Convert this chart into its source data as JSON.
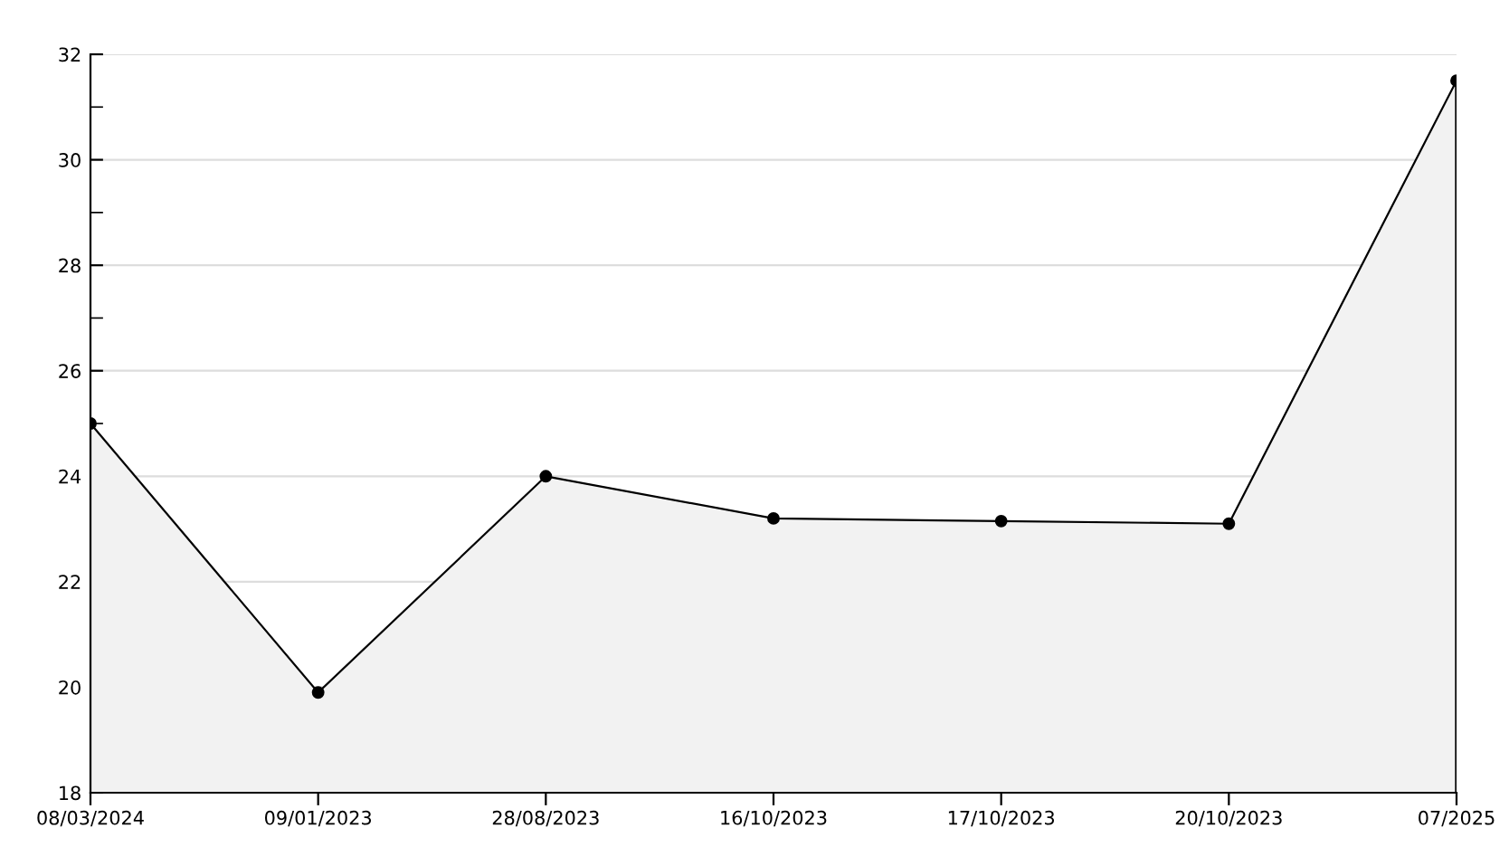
{
  "chart_data": {
    "type": "area",
    "categories": [
      "08/03/2024",
      "09/01/2023",
      "28/08/2023",
      "16/10/2023",
      "17/10/2023",
      "20/10/2023",
      "07/2025"
    ],
    "series": [
      {
        "color": "#000000",
        "values": [
          25,
          19.9,
          24,
          23.2,
          23.15,
          23.1,
          31.5
        ]
      }
    ],
    "ylim": [
      18,
      32
    ],
    "yticks": [
      18,
      20,
      22,
      24,
      26,
      28,
      30,
      32
    ],
    "grid": "y",
    "marker": "circle",
    "line_style": "solid"
  }
}
